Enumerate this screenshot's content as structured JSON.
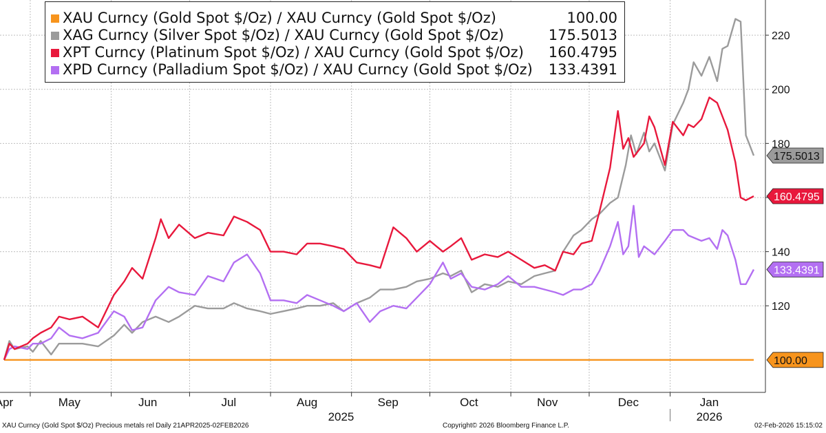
{
  "chart_data": {
    "type": "line",
    "x_range": [
      "2025-04-21",
      "2026-02-02"
    ],
    "ylim": [
      88,
      233
    ],
    "y_ticks": [
      120,
      140,
      160,
      180,
      200,
      220
    ],
    "x_ticks": [
      {
        "label": "Apr",
        "date": "2025-04-21"
      },
      {
        "label": "May",
        "date": "2025-05-16"
      },
      {
        "label": "Jun",
        "date": "2025-06-15"
      },
      {
        "label": "Jul",
        "date": "2025-07-16"
      },
      {
        "label": "Aug",
        "date": "2025-08-15"
      },
      {
        "label": "Sep",
        "date": "2025-09-15"
      },
      {
        "label": "Oct",
        "date": "2025-10-16"
      },
      {
        "label": "Nov",
        "date": "2025-11-15"
      },
      {
        "label": "Dec",
        "date": "2025-12-16"
      },
      {
        "label": "Jan",
        "date": "2026-01-16"
      }
    ],
    "year_labels": [
      {
        "label": "2025",
        "date": "2025-08-28"
      },
      {
        "label": "2026",
        "date": "2026-01-16"
      }
    ],
    "grid": true,
    "legend": "top-left",
    "series": [
      {
        "name": "XAU Curncy (Gold Spot  $/Oz) / XAU Curncy (Gold Spot  $/Oz)",
        "last_label": "100.00",
        "color": "#f7941d",
        "points": [
          [
            "2025-04-21",
            100
          ],
          [
            "2026-02-02",
            100
          ]
        ]
      },
      {
        "name": "XAG Curncy (Silver Spot  $/Oz) / XAU Curncy (Gold Spot  $/Oz)",
        "last_label": "175.5013",
        "color": "#9b9b9b",
        "points": [
          [
            "2025-04-21",
            100
          ],
          [
            "2025-04-23",
            107
          ],
          [
            "2025-04-25",
            104
          ],
          [
            "2025-04-30",
            105
          ],
          [
            "2025-05-02",
            103
          ],
          [
            "2025-05-05",
            107
          ],
          [
            "2025-05-09",
            102
          ],
          [
            "2025-05-12",
            106
          ],
          [
            "2025-05-16",
            106
          ],
          [
            "2025-05-21",
            106
          ],
          [
            "2025-05-27",
            105
          ],
          [
            "2025-06-02",
            109
          ],
          [
            "2025-06-06",
            113
          ],
          [
            "2025-06-09",
            110
          ],
          [
            "2025-06-13",
            114
          ],
          [
            "2025-06-18",
            116
          ],
          [
            "2025-06-23",
            114
          ],
          [
            "2025-06-27",
            116
          ],
          [
            "2025-07-03",
            120
          ],
          [
            "2025-07-08",
            119
          ],
          [
            "2025-07-14",
            119
          ],
          [
            "2025-07-18",
            121
          ],
          [
            "2025-07-23",
            119
          ],
          [
            "2025-07-28",
            118
          ],
          [
            "2025-08-01",
            117
          ],
          [
            "2025-08-06",
            118
          ],
          [
            "2025-08-11",
            119
          ],
          [
            "2025-08-15",
            120
          ],
          [
            "2025-08-20",
            120
          ],
          [
            "2025-08-25",
            121
          ],
          [
            "2025-08-29",
            118
          ],
          [
            "2025-09-03",
            121
          ],
          [
            "2025-09-08",
            123
          ],
          [
            "2025-09-12",
            126
          ],
          [
            "2025-09-17",
            126
          ],
          [
            "2025-09-22",
            127
          ],
          [
            "2025-09-26",
            129
          ],
          [
            "2025-10-01",
            130
          ],
          [
            "2025-10-06",
            132
          ],
          [
            "2025-10-09",
            131
          ],
          [
            "2025-10-13",
            133
          ],
          [
            "2025-10-17",
            125
          ],
          [
            "2025-10-22",
            128
          ],
          [
            "2025-10-27",
            127
          ],
          [
            "2025-10-31",
            129
          ],
          [
            "2025-11-05",
            128
          ],
          [
            "2025-11-10",
            131
          ],
          [
            "2025-11-14",
            132
          ],
          [
            "2025-11-18",
            133
          ],
          [
            "2025-11-21",
            140
          ],
          [
            "2025-11-25",
            146
          ],
          [
            "2025-11-28",
            148
          ],
          [
            "2025-12-02",
            152
          ],
          [
            "2025-12-05",
            154
          ],
          [
            "2025-12-09",
            158
          ],
          [
            "2025-12-12",
            160
          ],
          [
            "2025-12-15",
            172
          ],
          [
            "2025-12-17",
            183
          ],
          [
            "2025-12-19",
            176
          ],
          [
            "2025-12-22",
            184
          ],
          [
            "2025-12-24",
            177
          ],
          [
            "2025-12-26",
            180
          ],
          [
            "2025-12-30",
            170
          ],
          [
            "2026-01-02",
            187
          ],
          [
            "2026-01-06",
            195
          ],
          [
            "2026-01-08",
            200
          ],
          [
            "2026-01-10",
            210
          ],
          [
            "2026-01-13",
            205
          ],
          [
            "2026-01-16",
            212
          ],
          [
            "2026-01-19",
            203
          ],
          [
            "2026-01-21",
            215
          ],
          [
            "2026-01-23",
            216
          ],
          [
            "2026-01-26",
            226
          ],
          [
            "2026-01-28",
            225
          ],
          [
            "2026-01-30",
            183
          ],
          [
            "2026-02-02",
            175.5
          ]
        ]
      },
      {
        "name": "XPT Curncy (Platinum Spot  $/Oz) / XAU Curncy (Gold Spot  $/Oz)",
        "last_label": "160.4795",
        "color": "#e8183c",
        "points": [
          [
            "2025-04-21",
            100
          ],
          [
            "2025-04-23",
            106
          ],
          [
            "2025-04-25",
            104
          ],
          [
            "2025-04-30",
            106
          ],
          [
            "2025-05-02",
            108
          ],
          [
            "2025-05-05",
            110
          ],
          [
            "2025-05-09",
            112
          ],
          [
            "2025-05-12",
            116
          ],
          [
            "2025-05-16",
            115
          ],
          [
            "2025-05-21",
            116
          ],
          [
            "2025-05-27",
            112
          ],
          [
            "2025-06-02",
            124
          ],
          [
            "2025-06-06",
            129
          ],
          [
            "2025-06-09",
            134
          ],
          [
            "2025-06-13",
            130
          ],
          [
            "2025-06-18",
            145
          ],
          [
            "2025-06-20",
            152
          ],
          [
            "2025-06-23",
            145
          ],
          [
            "2025-06-27",
            150
          ],
          [
            "2025-07-03",
            145
          ],
          [
            "2025-07-08",
            147
          ],
          [
            "2025-07-14",
            146
          ],
          [
            "2025-07-18",
            153
          ],
          [
            "2025-07-23",
            151
          ],
          [
            "2025-07-28",
            148
          ],
          [
            "2025-08-01",
            140
          ],
          [
            "2025-08-06",
            140
          ],
          [
            "2025-08-11",
            139
          ],
          [
            "2025-08-15",
            143
          ],
          [
            "2025-08-20",
            143
          ],
          [
            "2025-08-25",
            142
          ],
          [
            "2025-08-29",
            141
          ],
          [
            "2025-09-03",
            136
          ],
          [
            "2025-09-08",
            135
          ],
          [
            "2025-09-12",
            134
          ],
          [
            "2025-09-17",
            149
          ],
          [
            "2025-09-22",
            145
          ],
          [
            "2025-09-26",
            140
          ],
          [
            "2025-10-01",
            144
          ],
          [
            "2025-10-06",
            140
          ],
          [
            "2025-10-09",
            142
          ],
          [
            "2025-10-13",
            145
          ],
          [
            "2025-10-17",
            137
          ],
          [
            "2025-10-22",
            139
          ],
          [
            "2025-10-27",
            138
          ],
          [
            "2025-10-31",
            140
          ],
          [
            "2025-11-05",
            137
          ],
          [
            "2025-11-10",
            134
          ],
          [
            "2025-11-14",
            135
          ],
          [
            "2025-11-18",
            133
          ],
          [
            "2025-11-21",
            140
          ],
          [
            "2025-11-25",
            139
          ],
          [
            "2025-11-28",
            143
          ],
          [
            "2025-12-02",
            144
          ],
          [
            "2025-12-05",
            155
          ],
          [
            "2025-12-09",
            171
          ],
          [
            "2025-12-12",
            192
          ],
          [
            "2025-12-14",
            178
          ],
          [
            "2025-12-16",
            182
          ],
          [
            "2025-12-18",
            175
          ],
          [
            "2025-12-22",
            180
          ],
          [
            "2025-12-24",
            190
          ],
          [
            "2025-12-26",
            186
          ],
          [
            "2025-12-30",
            172
          ],
          [
            "2026-01-02",
            188
          ],
          [
            "2026-01-06",
            183
          ],
          [
            "2026-01-08",
            187
          ],
          [
            "2026-01-10",
            186
          ],
          [
            "2026-01-13",
            189
          ],
          [
            "2026-01-16",
            197
          ],
          [
            "2026-01-19",
            195
          ],
          [
            "2026-01-21",
            190
          ],
          [
            "2026-01-23",
            185
          ],
          [
            "2026-01-26",
            173
          ],
          [
            "2026-01-28",
            160
          ],
          [
            "2026-01-30",
            159
          ],
          [
            "2026-02-02",
            160.5
          ]
        ]
      },
      {
        "name": "XPD Curncy (Palladium Spot  $/Oz) / XAU Curncy (Gold Spot  $/Oz)",
        "last_label": "133.4391",
        "color": "#b36ff2",
        "points": [
          [
            "2025-04-21",
            100
          ],
          [
            "2025-04-23",
            104
          ],
          [
            "2025-04-25",
            105
          ],
          [
            "2025-04-30",
            104
          ],
          [
            "2025-05-02",
            106
          ],
          [
            "2025-05-05",
            106
          ],
          [
            "2025-05-09",
            108
          ],
          [
            "2025-05-12",
            112
          ],
          [
            "2025-05-16",
            109
          ],
          [
            "2025-05-21",
            108
          ],
          [
            "2025-05-27",
            110
          ],
          [
            "2025-06-02",
            118
          ],
          [
            "2025-06-06",
            116
          ],
          [
            "2025-06-09",
            111
          ],
          [
            "2025-06-13",
            112
          ],
          [
            "2025-06-18",
            122
          ],
          [
            "2025-06-23",
            127
          ],
          [
            "2025-06-27",
            125
          ],
          [
            "2025-07-03",
            124
          ],
          [
            "2025-07-08",
            131
          ],
          [
            "2025-07-14",
            129
          ],
          [
            "2025-07-18",
            136
          ],
          [
            "2025-07-23",
            139
          ],
          [
            "2025-07-28",
            132
          ],
          [
            "2025-08-01",
            122
          ],
          [
            "2025-08-06",
            122
          ],
          [
            "2025-08-11",
            121
          ],
          [
            "2025-08-15",
            124
          ],
          [
            "2025-08-20",
            122
          ],
          [
            "2025-08-25",
            120
          ],
          [
            "2025-08-29",
            118
          ],
          [
            "2025-09-03",
            121
          ],
          [
            "2025-09-08",
            114
          ],
          [
            "2025-09-12",
            118
          ],
          [
            "2025-09-17",
            120
          ],
          [
            "2025-09-22",
            119
          ],
          [
            "2025-09-26",
            123
          ],
          [
            "2025-10-01",
            128
          ],
          [
            "2025-10-06",
            136
          ],
          [
            "2025-10-09",
            130
          ],
          [
            "2025-10-13",
            132
          ],
          [
            "2025-10-17",
            127
          ],
          [
            "2025-10-22",
            126
          ],
          [
            "2025-10-27",
            128
          ],
          [
            "2025-10-31",
            131
          ],
          [
            "2025-11-05",
            127
          ],
          [
            "2025-11-10",
            127
          ],
          [
            "2025-11-14",
            126
          ],
          [
            "2025-11-18",
            125
          ],
          [
            "2025-11-21",
            124
          ],
          [
            "2025-11-25",
            126
          ],
          [
            "2025-11-28",
            126
          ],
          [
            "2025-12-02",
            128
          ],
          [
            "2025-12-05",
            133
          ],
          [
            "2025-12-09",
            142
          ],
          [
            "2025-12-12",
            151
          ],
          [
            "2025-12-14",
            139
          ],
          [
            "2025-12-16",
            142
          ],
          [
            "2025-12-18",
            157
          ],
          [
            "2025-12-20",
            138
          ],
          [
            "2025-12-22",
            142
          ],
          [
            "2025-12-26",
            139
          ],
          [
            "2025-12-30",
            144
          ],
          [
            "2026-01-02",
            148
          ],
          [
            "2026-01-06",
            148
          ],
          [
            "2026-01-08",
            146
          ],
          [
            "2026-01-13",
            144
          ],
          [
            "2026-01-16",
            145
          ],
          [
            "2026-01-19",
            141
          ],
          [
            "2026-01-21",
            148
          ],
          [
            "2026-01-23",
            146
          ],
          [
            "2026-01-26",
            137
          ],
          [
            "2026-01-28",
            128
          ],
          [
            "2026-01-30",
            128
          ],
          [
            "2026-02-02",
            133.4
          ]
        ]
      }
    ]
  },
  "legend_rows": [
    {
      "name": "XAU Curncy (Gold Spot  $/Oz) / XAU Curncy (Gold Spot  $/Oz)",
      "value": "100.00",
      "color": "#f7941d"
    },
    {
      "name": "XAG Curncy (Silver Spot  $/Oz) / XAU Curncy (Gold Spot  $/Oz)",
      "value": "175.5013",
      "color": "#9b9b9b"
    },
    {
      "name": "XPT Curncy (Platinum Spot  $/Oz) / XAU Curncy (Gold Spot  $/Oz)",
      "value": "160.4795",
      "color": "#e8183c"
    },
    {
      "name": "XPD Curncy (Palladium Spot  $/Oz) / XAU Curncy (Gold Spot  $/Oz)",
      "value": "133.4391",
      "color": "#b36ff2"
    }
  ],
  "footer": {
    "left": "XAU Curncy (Gold Spot  $/Oz) Precious metals rel Daily 21APR2025-02FEB2026",
    "center": "Copyright© 2026 Bloomberg Finance L.P.",
    "right": "02-Feb-2026 15:15:02"
  }
}
